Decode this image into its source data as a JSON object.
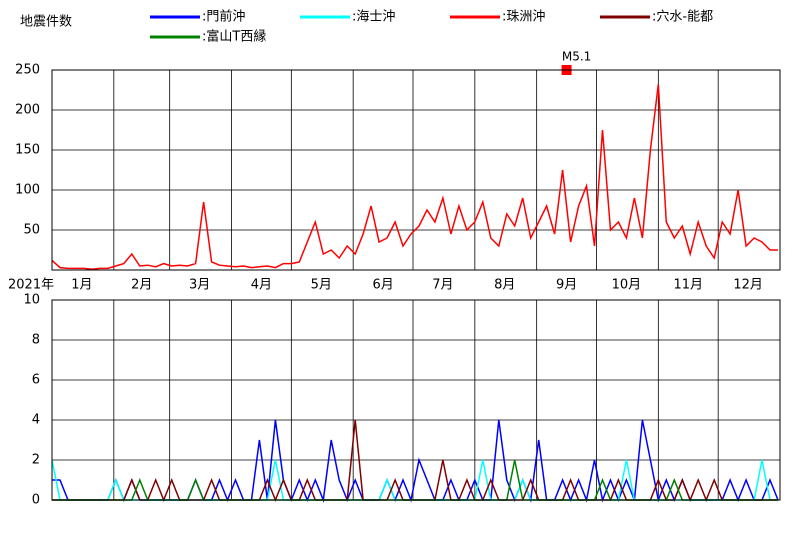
{
  "chart_data": [
    {
      "type": "line",
      "title": "地震件数",
      "xlabel": "2021年",
      "x": [
        0,
        4,
        8,
        12,
        16,
        20,
        24,
        28,
        32,
        36,
        40,
        44,
        48,
        52,
        56,
        60,
        64,
        68,
        72,
        76,
        80,
        84,
        88,
        92,
        96,
        100,
        104,
        108,
        112,
        116,
        120,
        124,
        128,
        132,
        136,
        140,
        144,
        148,
        152,
        156,
        160,
        164,
        168,
        172,
        176,
        180,
        184,
        188,
        192,
        196,
        200,
        204,
        208,
        212,
        216,
        220,
        224,
        228,
        232,
        236,
        240,
        244,
        248,
        252,
        256,
        260,
        264,
        268,
        272,
        276,
        280,
        284,
        288,
        292,
        296,
        300,
        304,
        308,
        312,
        316,
        320,
        324,
        328,
        332,
        336,
        340,
        344,
        348,
        352,
        356,
        360,
        364
      ],
      "series": [
        {
          "name": ":珠洲沖",
          "color": "#ff0000",
          "values": [
            12,
            3,
            2,
            2,
            2,
            1,
            2,
            2,
            5,
            8,
            20,
            5,
            6,
            4,
            8,
            5,
            6,
            5,
            8,
            85,
            10,
            6,
            5,
            4,
            5,
            3,
            4,
            5,
            3,
            8,
            8,
            10,
            35,
            60,
            20,
            25,
            15,
            30,
            20,
            45,
            80,
            35,
            40,
            60,
            30,
            45,
            55,
            75,
            60,
            90,
            45,
            80,
            50,
            60,
            85,
            40,
            30,
            70,
            55,
            90,
            40,
            60,
            80,
            45,
            125,
            35,
            80,
            105,
            30,
            175,
            50,
            60,
            40,
            90,
            40,
            150,
            232,
            60,
            40,
            55,
            20,
            60,
            30,
            15,
            60,
            45,
            100,
            30,
            40,
            35,
            25,
            25
          ]
        }
      ],
      "annotations": [
        {
          "text": "M5.1",
          "x": 258,
          "y": 250,
          "color": "#ff0000"
        }
      ],
      "xlim": [
        0,
        365
      ],
      "ylim": [
        0,
        250
      ],
      "yticks": [
        50,
        100,
        150,
        200,
        250
      ],
      "xticks": [
        {
          "value": 15,
          "label": "1月"
        },
        {
          "value": 45,
          "label": "2月"
        },
        {
          "value": 74,
          "label": "3月"
        },
        {
          "value": 105,
          "label": "4月"
        },
        {
          "value": 135,
          "label": "5月"
        },
        {
          "value": 166,
          "label": "6月"
        },
        {
          "value": 196,
          "label": "7月"
        },
        {
          "value": 227,
          "label": "8月"
        },
        {
          "value": 258,
          "label": "9月"
        },
        {
          "value": 288,
          "label": "10月"
        },
        {
          "value": 319,
          "label": "11月"
        },
        {
          "value": 349,
          "label": "12月"
        }
      ],
      "xgrid": [
        31,
        59,
        90,
        120,
        151,
        181,
        212,
        243,
        273,
        304,
        334
      ],
      "grid": true
    },
    {
      "type": "line",
      "x": [
        0,
        4,
        8,
        12,
        16,
        20,
        24,
        28,
        32,
        36,
        40,
        44,
        48,
        52,
        56,
        60,
        64,
        68,
        72,
        76,
        80,
        84,
        88,
        92,
        96,
        100,
        104,
        108,
        112,
        116,
        120,
        124,
        128,
        132,
        136,
        140,
        144,
        148,
        152,
        156,
        160,
        164,
        168,
        172,
        176,
        180,
        184,
        188,
        192,
        196,
        200,
        204,
        208,
        212,
        216,
        220,
        224,
        228,
        232,
        236,
        240,
        244,
        248,
        252,
        256,
        260,
        264,
        268,
        272,
        276,
        280,
        284,
        288,
        292,
        296,
        300,
        304,
        308,
        312,
        316,
        320,
        324,
        328,
        332,
        336,
        340,
        344,
        348,
        352,
        356,
        360,
        364
      ],
      "series": [
        {
          "name": ":門前沖",
          "color": "#0000ff",
          "values": [
            1,
            1,
            0,
            0,
            0,
            0,
            0,
            0,
            1,
            0,
            1,
            0,
            0,
            0,
            0,
            0,
            0,
            0,
            1,
            0,
            0,
            1,
            0,
            1,
            0,
            0,
            3,
            0,
            4,
            1,
            0,
            1,
            0,
            1,
            0,
            3,
            1,
            0,
            1,
            0,
            0,
            0,
            1,
            0,
            1,
            0,
            2,
            1,
            0,
            0,
            1,
            0,
            0,
            1,
            0,
            0,
            4,
            1,
            0,
            1,
            0,
            3,
            0,
            0,
            1,
            0,
            1,
            0,
            2,
            0,
            1,
            0,
            1,
            0,
            4,
            2,
            0,
            1,
            0,
            1,
            0,
            0,
            0,
            0,
            0,
            1,
            0,
            1,
            0,
            0,
            1,
            0
          ]
        },
        {
          "name": ":海士沖",
          "color": "#00ffff",
          "values": [
            2,
            0,
            0,
            0,
            0,
            0,
            0,
            0,
            1,
            0,
            0,
            0,
            0,
            0,
            0,
            0,
            0,
            0,
            0,
            0,
            0,
            0,
            0,
            0,
            0,
            0,
            0,
            0,
            2,
            0,
            0,
            0,
            0,
            0,
            0,
            0,
            0,
            0,
            0,
            0,
            0,
            0,
            1,
            0,
            0,
            0,
            0,
            0,
            0,
            0,
            0,
            0,
            0,
            0,
            2,
            0,
            0,
            0,
            0,
            1,
            0,
            0,
            0,
            0,
            0,
            0,
            0,
            0,
            0,
            0,
            0,
            0,
            2,
            0,
            0,
            0,
            0,
            0,
            0,
            0,
            0,
            0,
            0,
            0,
            0,
            0,
            0,
            0,
            0,
            2,
            0,
            0
          ]
        },
        {
          "name": ":穴水-能都",
          "color": "#800000",
          "values": [
            0,
            0,
            0,
            0,
            0,
            0,
            0,
            0,
            0,
            0,
            1,
            0,
            0,
            1,
            0,
            1,
            0,
            0,
            0,
            0,
            1,
            0,
            0,
            0,
            0,
            0,
            0,
            1,
            0,
            1,
            0,
            0,
            1,
            0,
            0,
            0,
            0,
            0,
            4,
            0,
            0,
            0,
            0,
            1,
            0,
            0,
            0,
            0,
            0,
            2,
            0,
            0,
            1,
            0,
            0,
            1,
            0,
            0,
            0,
            0,
            1,
            0,
            0,
            0,
            0,
            1,
            0,
            0,
            0,
            0,
            0,
            1,
            0,
            0,
            0,
            0,
            1,
            0,
            0,
            1,
            0,
            1,
            0,
            1,
            0,
            0,
            0,
            0,
            0,
            0,
            0,
            0
          ]
        },
        {
          "name": ":富山T西縁",
          "color": "#008000",
          "values": [
            0,
            0,
            0,
            0,
            0,
            0,
            0,
            0,
            0,
            0,
            0,
            1,
            0,
            0,
            0,
            0,
            0,
            0,
            1,
            0,
            0,
            0,
            0,
            0,
            0,
            0,
            0,
            0,
            0,
            0,
            0,
            0,
            0,
            0,
            0,
            0,
            0,
            0,
            0,
            0,
            0,
            0,
            0,
            0,
            0,
            0,
            0,
            0,
            0,
            0,
            0,
            0,
            0,
            0,
            0,
            0,
            0,
            0,
            2,
            0,
            0,
            0,
            0,
            0,
            0,
            0,
            0,
            0,
            0,
            1,
            0,
            0,
            0,
            0,
            0,
            0,
            0,
            0,
            1,
            0,
            0,
            0,
            0,
            0,
            0,
            0,
            0,
            0,
            0,
            0,
            0,
            0
          ]
        }
      ],
      "xlim": [
        0,
        365
      ],
      "ylim": [
        0,
        10
      ],
      "yticks": [
        0,
        2,
        4,
        6,
        8,
        10
      ],
      "xgrid": [
        31,
        59,
        90,
        120,
        151,
        181,
        212,
        243,
        273,
        304,
        334
      ],
      "grid": true
    }
  ]
}
